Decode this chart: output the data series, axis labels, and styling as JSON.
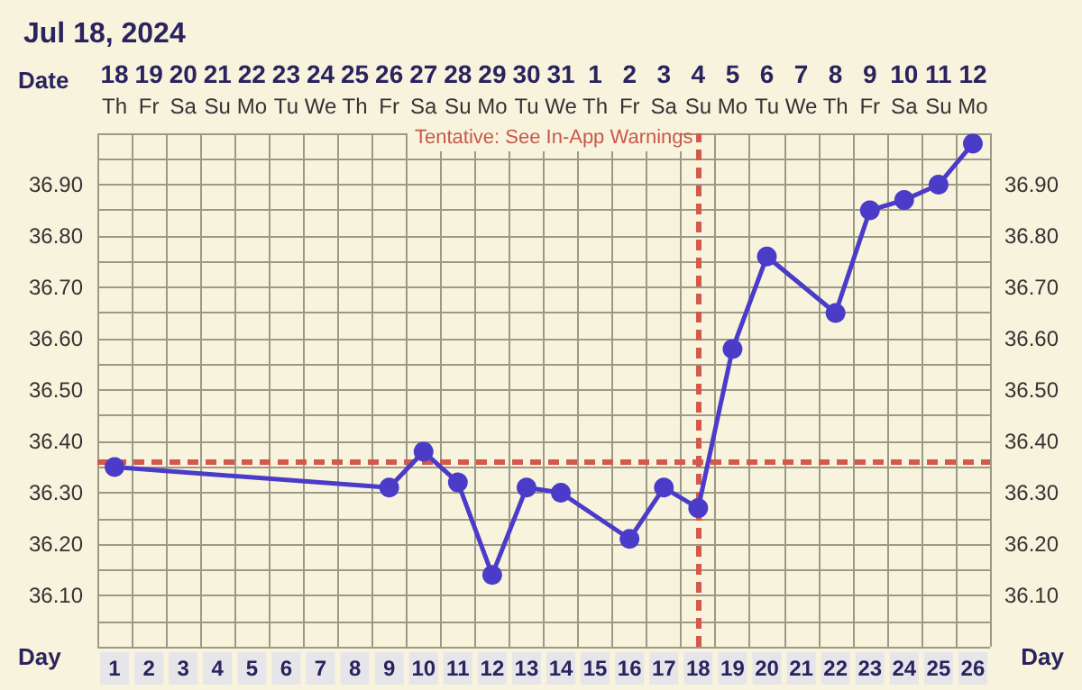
{
  "chart_data": {
    "type": "line",
    "title": "Jul 18, 2024",
    "categories": [
      "18\nTh",
      "19\nFr",
      "20\nSa",
      "21\nSu",
      "22\nMo",
      "23\nTu",
      "24\nWe",
      "25\nTh",
      "26\nFr",
      "27\nSa",
      "28\nSu",
      "29\nMo",
      "30\nTu",
      "31\nWe",
      "1\nTh",
      "2\nFr",
      "3\nSa",
      "4\nSu",
      "5\nMo",
      "6\nTu",
      "7\nWe",
      "8\nTh",
      "9\nFr",
      "10\nSa",
      "11\nSu",
      "12\nMo"
    ],
    "xlabel": "Date",
    "x2label": "Day",
    "x2lim": [
      0.5,
      26.5
    ],
    "x2ticks": [
      1,
      2,
      3,
      4,
      5,
      6,
      7,
      8,
      9,
      10,
      11,
      12,
      13,
      14,
      15,
      16,
      17,
      18,
      19,
      20,
      21,
      22,
      23,
      24,
      25,
      26
    ],
    "series": [
      {
        "color": "#4a3cc8",
        "values": [
          36.35,
          null,
          null,
          null,
          null,
          null,
          null,
          null,
          36.31,
          36.38,
          36.32,
          36.14,
          36.31,
          36.3,
          null,
          36.21,
          36.31,
          36.27,
          36.58,
          36.76,
          null,
          36.65,
          36.85,
          36.87,
          36.9,
          36.98
        ]
      }
    ],
    "ylim": [
      36.0,
      37.0
    ],
    "yticks": [
      {
        "value": 36.1,
        "label": "36.10"
      },
      {
        "value": 36.2,
        "label": "36.20"
      },
      {
        "value": 36.3,
        "label": "36.30"
      },
      {
        "value": 36.4,
        "label": "36.40"
      },
      {
        "value": 36.5,
        "label": "36.50"
      },
      {
        "value": 36.6,
        "label": "36.60"
      },
      {
        "value": 36.7,
        "label": "36.70"
      },
      {
        "value": 36.8,
        "label": "36.80"
      },
      {
        "value": 36.9,
        "label": "36.90"
      }
    ],
    "y2lim": [
      36.0,
      37.0
    ],
    "y2ticks": [
      {
        "value": 36.1,
        "label": "36.10"
      },
      {
        "value": 36.2,
        "label": "36.20"
      },
      {
        "value": 36.3,
        "label": "36.30"
      },
      {
        "value": 36.4,
        "label": "36.40"
      },
      {
        "value": 36.5,
        "label": "36.50"
      },
      {
        "value": 36.6,
        "label": "36.60"
      },
      {
        "value": 36.7,
        "label": "36.70"
      },
      {
        "value": 36.8,
        "label": "36.80"
      },
      {
        "value": 36.9,
        "label": "36.90"
      }
    ],
    "ref_lines": [
      {
        "axis": "y",
        "value": 36.36,
        "color": "#d4584c",
        "line_style": "dashed"
      },
      {
        "axis": "x",
        "value": "4\nSu",
        "color": "#d4584c",
        "line_style": "dashed"
      }
    ],
    "annotations": [
      "Tentative: See In-App Warnings"
    ],
    "grid": true,
    "marker": "circle",
    "line_style": "solid"
  }
}
